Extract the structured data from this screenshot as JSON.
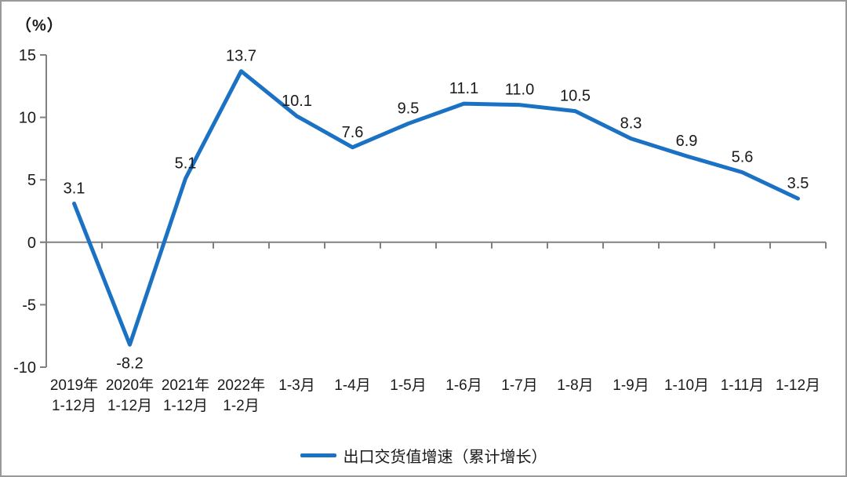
{
  "chart_data": {
    "type": "line",
    "title": "",
    "xlabel": "",
    "ylabel": "（%）",
    "categories": [
      [
        "2019年",
        "1-12月"
      ],
      [
        "2020年",
        "1-12月"
      ],
      [
        "2021年",
        "1-12月"
      ],
      [
        "2022年",
        "1-2月"
      ],
      [
        "1-3月"
      ],
      [
        "1-4月"
      ],
      [
        "1-5月"
      ],
      [
        "1-6月"
      ],
      [
        "1-7月"
      ],
      [
        "1-8月"
      ],
      [
        "1-9月"
      ],
      [
        "1-10月"
      ],
      [
        "1-11月"
      ],
      [
        "1-12月"
      ]
    ],
    "values": [
      3.1,
      -8.2,
      5.1,
      13.7,
      10.1,
      7.6,
      9.5,
      11.1,
      11.0,
      10.5,
      8.3,
      6.9,
      5.6,
      3.5
    ],
    "value_labels": [
      "3.1",
      "-8.2",
      "5.1",
      "13.7",
      "10.1",
      "7.6",
      "9.5",
      "11.1",
      "11.0",
      "10.5",
      "8.3",
      "6.9",
      "5.6",
      "3.5"
    ],
    "yticks": [
      15,
      10,
      5,
      0,
      -5,
      -10
    ],
    "ylim": [
      -10,
      15
    ],
    "grid": false,
    "legend": {
      "label": "出口交货值增速（累计增长）",
      "position": "bottom"
    },
    "colors": {
      "line": "#1B72C4",
      "axis": "#808080",
      "text": "#1A1A1A"
    }
  }
}
